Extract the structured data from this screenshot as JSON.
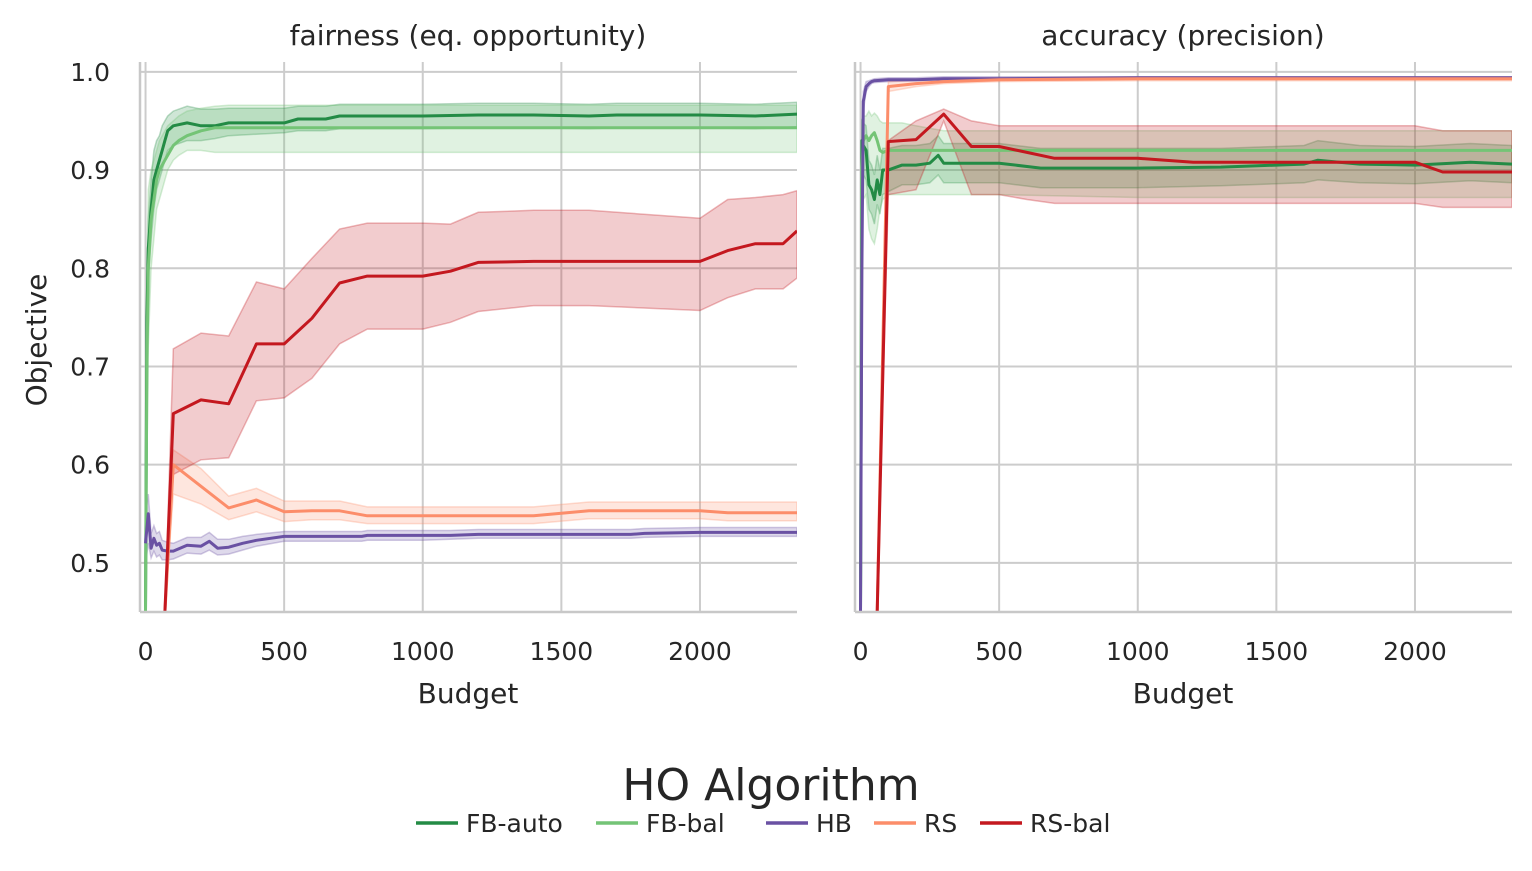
{
  "chart_data": {
    "type": "line",
    "ylabel": "Objective",
    "xlabel": "Budget",
    "xlim": [
      -20,
      2350
    ],
    "ylim": [
      0.45,
      1.01
    ],
    "xticks": [
      0,
      500,
      1000,
      1500,
      2000
    ],
    "xtick_labels": [
      "0",
      "500",
      "1000",
      "1500",
      "2000"
    ],
    "yticks": [
      0.5,
      0.6,
      0.7,
      0.8,
      0.9,
      1.0
    ],
    "ytick_labels": [
      "0.5",
      "0.6",
      "0.7",
      "0.8",
      "0.9",
      "1.0"
    ],
    "grid": true,
    "legend": {
      "title": "HO Algorithm",
      "placement": "bottom-center",
      "entries": [
        "FB-auto",
        "FB-bal",
        "HB",
        "RS",
        "RS-bal"
      ]
    },
    "colors": {
      "FB-auto": "#238b45",
      "FB-bal": "#74c476",
      "HB": "#6a51a3",
      "RS": "#fc8d6a",
      "RS-bal": "#c4181f"
    },
    "panels": [
      {
        "title": "fairness (eq. opportunity)",
        "series": [
          {
            "name": "FB-auto",
            "x": [
              0,
              5,
              10,
              20,
              30,
              40,
              50,
              60,
              70,
              80,
              100,
              150,
              200,
              250,
              300,
              500,
              550,
              650,
              700,
              900,
              1000,
              1200,
              1400,
              1600,
              1700,
              2000,
              2200,
              2350
            ],
            "y": [
              0.45,
              0.75,
              0.82,
              0.86,
              0.89,
              0.9,
              0.91,
              0.92,
              0.93,
              0.94,
              0.945,
              0.948,
              0.945,
              0.945,
              0.948,
              0.948,
              0.952,
              0.952,
              0.955,
              0.955,
              0.955,
              0.956,
              0.956,
              0.955,
              0.956,
              0.956,
              0.955,
              0.957
            ],
            "lower": [
              0.45,
              0.72,
              0.79,
              0.83,
              0.86,
              0.88,
              0.89,
              0.9,
              0.91,
              0.92,
              0.925,
              0.93,
              0.93,
              0.932,
              0.935,
              0.938,
              0.94,
              0.94,
              0.942,
              0.942,
              0.942,
              0.943,
              0.943,
              0.942,
              0.943,
              0.943,
              0.942,
              0.944
            ],
            "upper": [
              0.45,
              0.78,
              0.85,
              0.89,
              0.92,
              0.93,
              0.935,
              0.945,
              0.95,
              0.955,
              0.96,
              0.965,
              0.962,
              0.962,
              0.963,
              0.963,
              0.965,
              0.965,
              0.967,
              0.967,
              0.967,
              0.968,
              0.968,
              0.967,
              0.968,
              0.968,
              0.967,
              0.969
            ]
          },
          {
            "name": "FB-bal",
            "x": [
              0,
              5,
              10,
              20,
              30,
              40,
              50,
              60,
              70,
              80,
              100,
              120,
              150,
              200,
              250,
              300,
              500,
              1000,
              1500,
              2000,
              2350
            ],
            "y": [
              0.45,
              0.7,
              0.8,
              0.85,
              0.87,
              0.89,
              0.9,
              0.905,
              0.91,
              0.915,
              0.925,
              0.93,
              0.935,
              0.94,
              0.943,
              0.943,
              0.943,
              0.943,
              0.943,
              0.943,
              0.943
            ],
            "lower": [
              0.45,
              0.6,
              0.72,
              0.8,
              0.83,
              0.86,
              0.87,
              0.88,
              0.89,
              0.9,
              0.91,
              0.915,
              0.92,
              0.92,
              0.918,
              0.918,
              0.918,
              0.918,
              0.918,
              0.918,
              0.918
            ],
            "upper": [
              0.45,
              0.8,
              0.88,
              0.9,
              0.91,
              0.92,
              0.93,
              0.935,
              0.94,
              0.945,
              0.95,
              0.955,
              0.96,
              0.963,
              0.965,
              0.966,
              0.966,
              0.966,
              0.966,
              0.966,
              0.966
            ]
          },
          {
            "name": "HB",
            "x": [
              0,
              10,
              20,
              30,
              40,
              50,
              60,
              80,
              100,
              150,
              200,
              230,
              260,
              300,
              350,
              400,
              500,
              600,
              700,
              780,
              800,
              1000,
              1100,
              1200,
              1500,
              1750,
              1800,
              2000,
              2350
            ],
            "y": [
              0.52,
              0.55,
              0.515,
              0.525,
              0.518,
              0.52,
              0.513,
              0.512,
              0.512,
              0.518,
              0.517,
              0.522,
              0.515,
              0.516,
              0.52,
              0.523,
              0.527,
              0.527,
              0.527,
              0.527,
              0.528,
              0.528,
              0.528,
              0.529,
              0.529,
              0.529,
              0.53,
              0.531,
              0.531
            ],
            "lower": [
              0.5,
              0.52,
              0.505,
              0.512,
              0.506,
              0.508,
              0.503,
              0.503,
              0.504,
              0.51,
              0.509,
              0.513,
              0.508,
              0.509,
              0.513,
              0.517,
              0.522,
              0.522,
              0.522,
              0.522,
              0.523,
              0.523,
              0.524,
              0.525,
              0.525,
              0.525,
              0.526,
              0.527,
              0.527
            ],
            "upper": [
              0.55,
              0.57,
              0.53,
              0.538,
              0.53,
              0.532,
              0.523,
              0.521,
              0.52,
              0.526,
              0.526,
              0.531,
              0.524,
              0.524,
              0.527,
              0.529,
              0.532,
              0.532,
              0.532,
              0.532,
              0.533,
              0.533,
              0.533,
              0.534,
              0.534,
              0.534,
              0.535,
              0.536,
              0.536
            ]
          },
          {
            "name": "RS",
            "x": [
              70,
              100,
              200,
              300,
              400,
              500,
              600,
              700,
              800,
              1000,
              1200,
              1400,
              1600,
              1800,
              2000,
              2100,
              2350
            ],
            "y": [
              0.45,
              0.6,
              0.578,
              0.556,
              0.564,
              0.552,
              0.553,
              0.553,
              0.548,
              0.548,
              0.548,
              0.548,
              0.553,
              0.553,
              0.553,
              0.551,
              0.551
            ],
            "lower": [
              0.45,
              0.57,
              0.56,
              0.544,
              0.552,
              0.542,
              0.544,
              0.544,
              0.54,
              0.54,
              0.54,
              0.54,
              0.545,
              0.545,
              0.545,
              0.543,
              0.543
            ],
            "upper": [
              0.45,
              0.615,
              0.596,
              0.568,
              0.576,
              0.563,
              0.563,
              0.563,
              0.557,
              0.557,
              0.557,
              0.557,
              0.562,
              0.562,
              0.562,
              0.562,
              0.562
            ]
          },
          {
            "name": "RS-bal",
            "x": [
              70,
              100,
              200,
              300,
              400,
              500,
              600,
              700,
              800,
              1000,
              1100,
              1200,
              1400,
              1600,
              2000,
              2100,
              2200,
              2300,
              2350
            ],
            "y": [
              0.45,
              0.652,
              0.666,
              0.662,
              0.723,
              0.723,
              0.749,
              0.785,
              0.792,
              0.792,
              0.797,
              0.806,
              0.807,
              0.807,
              0.807,
              0.818,
              0.825,
              0.825,
              0.838
            ],
            "lower": [
              0.45,
              0.59,
              0.605,
              0.607,
              0.665,
              0.668,
              0.688,
              0.723,
              0.738,
              0.738,
              0.745,
              0.756,
              0.762,
              0.762,
              0.757,
              0.77,
              0.779,
              0.779,
              0.79
            ],
            "upper": [
              0.45,
              0.718,
              0.734,
              0.731,
              0.786,
              0.779,
              0.81,
              0.84,
              0.846,
              0.846,
              0.845,
              0.857,
              0.859,
              0.859,
              0.851,
              0.87,
              0.872,
              0.875,
              0.879
            ]
          }
        ]
      },
      {
        "title": "accuracy (precision)",
        "series": [
          {
            "name": "FB-auto",
            "x": [
              0,
              5,
              10,
              20,
              30,
              40,
              50,
              60,
              70,
              80,
              100,
              150,
              200,
              250,
              280,
              300,
              350,
              500,
              650,
              1000,
              1300,
              1500,
              1600,
              1650,
              1800,
              2000,
              2200,
              2350
            ],
            "y": [
              0.45,
              0.93,
              0.925,
              0.92,
              0.885,
              0.88,
              0.87,
              0.89,
              0.875,
              0.9,
              0.9,
              0.905,
              0.905,
              0.907,
              0.915,
              0.907,
              0.907,
              0.907,
              0.902,
              0.902,
              0.903,
              0.905,
              0.906,
              0.91,
              0.906,
              0.905,
              0.908,
              0.906
            ],
            "lower": [
              0.45,
              0.9,
              0.895,
              0.89,
              0.86,
              0.855,
              0.845,
              0.865,
              0.855,
              0.875,
              0.878,
              0.885,
              0.885,
              0.887,
              0.895,
              0.887,
              0.887,
              0.887,
              0.882,
              0.882,
              0.884,
              0.886,
              0.887,
              0.89,
              0.887,
              0.886,
              0.889,
              0.887
            ],
            "upper": [
              0.45,
              0.95,
              0.948,
              0.945,
              0.91,
              0.905,
              0.895,
              0.915,
              0.9,
              0.922,
              0.922,
              0.925,
              0.925,
              0.927,
              0.935,
              0.927,
              0.927,
              0.927,
              0.922,
              0.922,
              0.922,
              0.924,
              0.925,
              0.93,
              0.925,
              0.924,
              0.927,
              0.925
            ]
          },
          {
            "name": "FB-bal",
            "x": [
              0,
              5,
              10,
              20,
              30,
              40,
              50,
              60,
              70,
              80,
              100,
              150,
              200,
              300,
              500,
              1000,
              1500,
              2000,
              2350
            ],
            "y": [
              0.45,
              0.9,
              0.93,
              0.935,
              0.93,
              0.935,
              0.938,
              0.93,
              0.92,
              0.918,
              0.92,
              0.92,
              0.92,
              0.92,
              0.92,
              0.92,
              0.92,
              0.92,
              0.92
            ],
            "lower": [
              0.45,
              0.85,
              0.87,
              0.875,
              0.84,
              0.83,
              0.825,
              0.84,
              0.86,
              0.87,
              0.875,
              0.875,
              0.875,
              0.875,
              0.875,
              0.872,
              0.872,
              0.872,
              0.872
            ],
            "upper": [
              0.45,
              0.95,
              0.955,
              0.955,
              0.96,
              0.955,
              0.958,
              0.955,
              0.95,
              0.948,
              0.948,
              0.948,
              0.945,
              0.94,
              0.94,
              0.94,
              0.94,
              0.94,
              0.94
            ]
          },
          {
            "name": "HB",
            "x": [
              0,
              5,
              10,
              20,
              30,
              40,
              50,
              100,
              200,
              300,
              500,
              1000,
              1500,
              2000,
              2350
            ],
            "y": [
              0.45,
              0.8,
              0.97,
              0.985,
              0.988,
              0.99,
              0.991,
              0.992,
              0.992,
              0.993,
              0.993,
              0.994,
              0.994,
              0.994,
              0.994
            ],
            "lower": [
              0.45,
              0.78,
              0.96,
              0.98,
              0.985,
              0.988,
              0.989,
              0.99,
              0.991,
              0.992,
              0.992,
              0.993,
              0.993,
              0.993,
              0.993
            ],
            "upper": [
              0.45,
              0.82,
              0.98,
              0.99,
              0.991,
              0.992,
              0.993,
              0.994,
              0.994,
              0.995,
              0.995,
              0.995,
              0.995,
              0.995,
              0.995
            ]
          },
          {
            "name": "RS",
            "x": [
              60,
              100,
              200,
              300,
              500,
              1000,
              1500,
              2000,
              2350
            ],
            "y": [
              0.45,
              0.985,
              0.988,
              0.99,
              0.992,
              0.993,
              0.993,
              0.993,
              0.993
            ],
            "lower": [
              0.45,
              0.98,
              0.985,
              0.988,
              0.99,
              0.991,
              0.991,
              0.991,
              0.991
            ],
            "upper": [
              0.45,
              0.99,
              0.992,
              0.993,
              0.994,
              0.995,
              0.995,
              0.995,
              0.995
            ]
          },
          {
            "name": "RS-bal",
            "x": [
              60,
              100,
              200,
              300,
              400,
              500,
              600,
              700,
              800,
              1000,
              1100,
              1200,
              1400,
              1600,
              1800,
              2000,
              2100,
              2350
            ],
            "y": [
              0.45,
              0.929,
              0.931,
              0.957,
              0.924,
              0.924,
              0.918,
              0.912,
              0.912,
              0.912,
              0.91,
              0.908,
              0.908,
              0.908,
              0.908,
              0.908,
              0.898,
              0.898
            ],
            "lower": [
              0.45,
              0.875,
              0.88,
              0.95,
              0.875,
              0.875,
              0.87,
              0.866,
              0.866,
              0.866,
              0.866,
              0.866,
              0.866,
              0.866,
              0.866,
              0.866,
              0.862,
              0.862
            ],
            "upper": [
              0.45,
              0.93,
              0.95,
              0.962,
              0.95,
              0.945,
              0.945,
              0.945,
              0.945,
              0.945,
              0.945,
              0.945,
              0.945,
              0.945,
              0.945,
              0.945,
              0.94,
              0.94
            ]
          }
        ]
      }
    ]
  }
}
